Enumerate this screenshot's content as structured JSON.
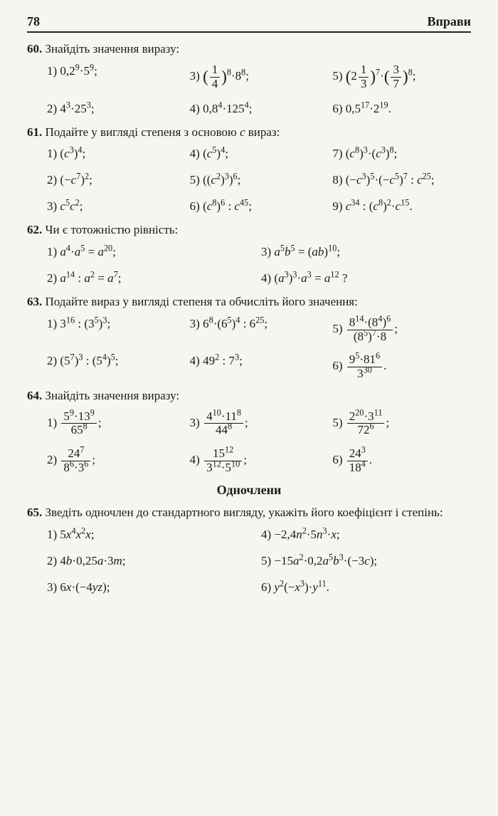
{
  "header": {
    "page": "78",
    "section": "Вправи"
  },
  "p60": {
    "num": "60.",
    "prompt": "Знайдіть значення виразу:",
    "items": [
      "1) 0,2<sup>9</sup>·5<sup>9</sup>;",
      "3) <span class='big'>(</span><span class='frac'><span class='n'>1</span><span class='d'>4</span></span><span class='big'>)</span><sup>8</sup>·8<sup>8</sup>;",
      "5) <span class='big'>(</span>2<span class='frac'><span class='n'>1</span><span class='d'>3</span></span><span class='big'>)</span><sup>7</sup>·<span class='big'>(</span><span class='frac'><span class='n'>3</span><span class='d'>7</span></span><span class='big'>)</span><sup>8</sup>;",
      "2) 4<sup>3</sup>·25<sup>3</sup>;",
      "4) 0,8<sup>4</sup>·125<sup>4</sup>;",
      "6) 0,5<sup>17</sup>·2<sup>19</sup>."
    ]
  },
  "p61": {
    "num": "61.",
    "prompt": "Подайте у вигляді степеня з основою <i>c</i> вираз:",
    "items": [
      "1) (<i>c</i><sup>3</sup>)<sup>4</sup>;",
      "4) (<i>c</i><sup>5</sup>)<sup>4</sup>;",
      "7) (<i>c</i><sup>8</sup>)<sup>3</sup>·(<i>c</i><sup>3</sup>)<sup>8</sup>;",
      "2) (−<i>c</i><sup>7</sup>)<sup>2</sup>;",
      "5) ((<i>c</i><sup>2</sup>)<sup>3</sup>)<sup>6</sup>;",
      "8) (−<i>c</i><sup>3</sup>)<sup>5</sup>·(−<i>c</i><sup>5</sup>)<sup>7</sup> : <i>c</i><sup>25</sup>;",
      "3) <i>c</i><sup>5</sup><i>c</i><sup>2</sup>;",
      "6) (<i>c</i><sup>8</sup>)<sup>6</sup> : <i>c</i><sup>45</sup>;",
      "9) <i>c</i><sup>34</sup> : (<i>c</i><sup>8</sup>)<sup>2</sup>·<i>c</i><sup>15</sup>."
    ]
  },
  "p62": {
    "num": "62.",
    "prompt": "Чи є тотожністю рівність:",
    "items": [
      "1) <i>a</i><sup>4</sup>·<i>a</i><sup>5</sup> = <i>a</i><sup>20</sup>;",
      "3) <i>a</i><sup>5</sup><i>b</i><sup>5</sup> = (<i>ab</i>)<sup>10</sup>;",
      "2) <i>a</i><sup>14</sup> : <i>a</i><sup>2</sup> = <i>a</i><sup>7</sup>;",
      "4) (<i>a</i><sup>3</sup>)<sup>3</sup>·<i>a</i><sup>3</sup> = <i>a</i><sup>12</sup> ?"
    ]
  },
  "p63": {
    "num": "63.",
    "prompt": "Подайте вираз у вигляді степеня та обчисліть його зна­чення:",
    "items": [
      "1) 3<sup>16</sup> : (3<sup>5</sup>)<sup>3</sup>;",
      "3) 6<sup>8</sup>·(6<sup>5</sup>)<sup>4</sup> : 6<sup>25</sup>;",
      "5) <span class='frac'><span class='n'>8<sup>14</sup>·(8<sup>4</sup>)<sup>6</sup></span><span class='d'>(8<sup>5</sup>)<sup>7</sup>·8</span></span>;",
      "2) (5<sup>7</sup>)<sup>3</sup> : (5<sup>4</sup>)<sup>5</sup>;",
      "4) 49<sup>2</sup> : 7<sup>3</sup>;",
      "6) <span class='frac'><span class='n'>9<sup>5</sup>·81<sup>6</sup></span><span class='d'>3<sup>30</sup></span></span>."
    ]
  },
  "p64": {
    "num": "64.",
    "prompt": "Знайдіть значення виразу:",
    "items": [
      "1) <span class='frac'><span class='n'>5<sup>9</sup>·13<sup>9</sup></span><span class='d'>65<sup>8</sup></span></span>;",
      "3) <span class='frac'><span class='n'>4<sup>10</sup>·11<sup>8</sup></span><span class='d'>44<sup>8</sup></span></span>;",
      "5) <span class='frac'><span class='n'>2<sup>20</sup>·3<sup>11</sup></span><span class='d'>72<sup>6</sup></span></span>;",
      "2) <span class='frac'><span class='n'>24<sup>7</sup></span><span class='d'>8<sup>6</sup>·3<sup>6</sup></span></span>;",
      "4) <span class='frac'><span class='n'>15<sup>12</sup></span><span class='d'>3<sup>12</sup>·5<sup>10</sup></span></span>;",
      "6) <span class='frac'><span class='n'>24<sup>3</sup></span><span class='d'>18<sup>4</sup></span></span>."
    ]
  },
  "sectionH": "Одночлени",
  "p65": {
    "num": "65.",
    "prompt": "Зведіть одночлен до стандартного вигляду, укажіть його коефіцієнт і степінь:",
    "items": [
      "1) 5<i>x</i><sup>4</sup><i>x</i><sup>2</sup><i>x</i>;",
      "4) −2,4<i>n</i><sup>2</sup>·5<i>n</i><sup>3</sup>·<i>x</i>;",
      "2) 4<i>b</i>·0,25<i>a</i>·3<i>m</i>;",
      "5) −15<i>a</i><sup>2</sup>·0,2<i>a</i><sup>5</sup><i>b</i><sup>3</sup>·(−3<i>c</i>);",
      "3) 6<i>x</i>·(−4<i>yz</i>);",
      "6) <i>y</i><sup>2</sup>(−<i>x</i><sup>3</sup>)·<i>y</i><sup>11</sup>."
    ]
  }
}
